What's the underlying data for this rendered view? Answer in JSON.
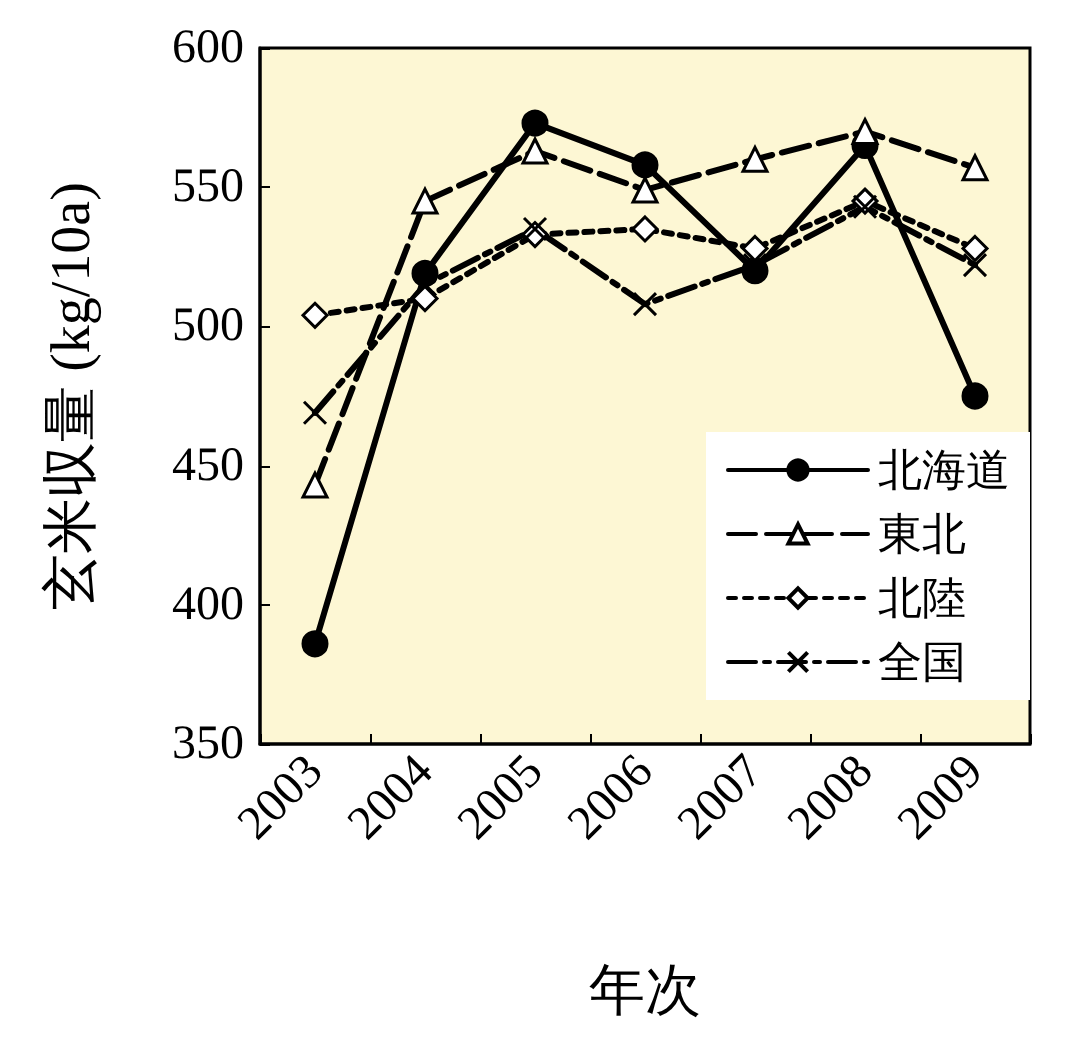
{
  "chart_data": {
    "type": "line",
    "xlabel": "年次",
    "ylabel": "玄米収量 (kg/10a)",
    "categories": [
      "2003",
      "2004",
      "2005",
      "2006",
      "2007",
      "2008",
      "2009"
    ],
    "series": [
      {
        "name": "北海道",
        "color": "#000000",
        "marker": "circle",
        "line_style": "solid",
        "values": [
          386,
          519,
          573,
          558,
          520,
          565,
          475
        ]
      },
      {
        "name": "東北",
        "color": "#000000",
        "marker": "triangle",
        "line_style": "dashed",
        "values": [
          443,
          545,
          563,
          549,
          560,
          570,
          557
        ]
      },
      {
        "name": "北陸",
        "color": "#000000",
        "marker": "diamond",
        "line_style": "dotted",
        "values": [
          504,
          510,
          533,
          535,
          528,
          545,
          528
        ]
      },
      {
        "name": "全国",
        "color": "#000000",
        "marker": "cross",
        "line_style": "dashdot",
        "values": [
          469,
          515,
          535,
          508,
          522,
          543,
          522
        ]
      }
    ],
    "ylim": [
      350,
      600
    ],
    "yticks": [
      350,
      400,
      450,
      500,
      550,
      600
    ],
    "grid": false,
    "legend": "bottom right"
  }
}
